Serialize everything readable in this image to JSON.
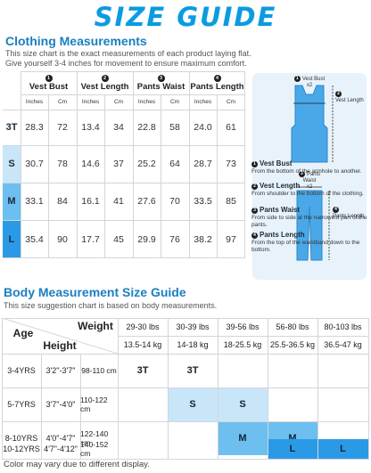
{
  "title": "SIZE GUIDE",
  "clothing": {
    "title": "Clothing Measurements",
    "subtitle_line1": "This size chart is the exact measurements of each product laying flat.",
    "subtitle_line2": "Give yourself 3-4 inches for movement to ensure maximum comfort.",
    "columns": [
      {
        "num": "1",
        "label": "Vest Bust"
      },
      {
        "num": "2",
        "label": "Vest Length"
      },
      {
        "num": "3",
        "label": "Pants Waist"
      },
      {
        "num": "4",
        "label": "Pants Length"
      }
    ],
    "units": [
      "Inches",
      "Cm",
      "Inches",
      "Cm",
      "Inches",
      "Cm",
      "Inches",
      "Cm"
    ],
    "rows": [
      {
        "size": "3T",
        "values": [
          "28.3",
          "72",
          "13.4",
          "34",
          "22.8",
          "58",
          "24.0",
          "61"
        ],
        "color": "#ffffff"
      },
      {
        "size": "S",
        "values": [
          "30.7",
          "78",
          "14.6",
          "37",
          "25.2",
          "64",
          "28.7",
          "73"
        ],
        "color": "#c9e6f8"
      },
      {
        "size": "M",
        "values": [
          "33.1",
          "84",
          "16.1",
          "41",
          "27.6",
          "70",
          "33.5",
          "85"
        ],
        "color": "#6cbfee"
      },
      {
        "size": "L",
        "values": [
          "35.4",
          "90",
          "17.7",
          "45",
          "29.9",
          "76",
          "38.2",
          "97"
        ],
        "color": "#2b9ae6"
      }
    ]
  },
  "diagram": {
    "vest_bust": "Vest Bust",
    "vest_bust_x2": "x2",
    "vest_length": "Vest Length",
    "pants_waist": "Pants Waist",
    "pants_waist_x2": "x2",
    "pants_length": "Pants Length",
    "legend": [
      {
        "num": "1",
        "title": "Vest Bust",
        "desc": "From the bottom of the armhole to another."
      },
      {
        "num": "2",
        "title": "Vest Length",
        "desc": "From shoulder to the bottom of the clothing."
      },
      {
        "num": "3",
        "title": "Pants Waist",
        "desc": "From side to side at the narrowest part of the pants."
      },
      {
        "num": "4",
        "title": "Pants Length",
        "desc": "From the top of the waistband down to the bottom."
      }
    ],
    "colors": {
      "garment": "#4aa8e8",
      "panel": "#e7f2fb"
    }
  },
  "body": {
    "title": "Body Measurement Size Guide",
    "subtitle": "This size suggestion chart is based on body measurements.",
    "age_header": "Age",
    "weight_header": "Weight",
    "height_header": "Height",
    "weights_lbs": [
      "29-30 lbs",
      "30-39 lbs",
      "39-56 lbs",
      "56-80 lbs",
      "80-103 lbs"
    ],
    "weights_kg": [
      "13.5-14 kg",
      "14-18 kg",
      "18-25.5 kg",
      "25.5-36.5 kg",
      "36.5-47 kg"
    ],
    "rows": [
      {
        "age": "3-4YRS",
        "height_ft": "3'2\"-3'7\"",
        "height_cm": "98-110 cm",
        "sizes": [
          "3T",
          "3T"
        ]
      },
      {
        "age": "5-7YRS",
        "height_ft": "3'7\"-4'0\"",
        "height_cm": "110-122 cm",
        "sizes": [
          "S",
          "S"
        ]
      },
      {
        "age": "8-10YRS",
        "height_ft": "4'0\"-4'7\"",
        "height_cm": "122-140 cm",
        "sizes": [
          "M",
          "M"
        ]
      },
      {
        "age": "10-12YRS",
        "height_ft": "4'7\"-4'12\"",
        "height_cm": "140-152 cm",
        "sizes": [
          "L",
          "L"
        ]
      }
    ]
  },
  "footnote": "Color may vary due to different display."
}
